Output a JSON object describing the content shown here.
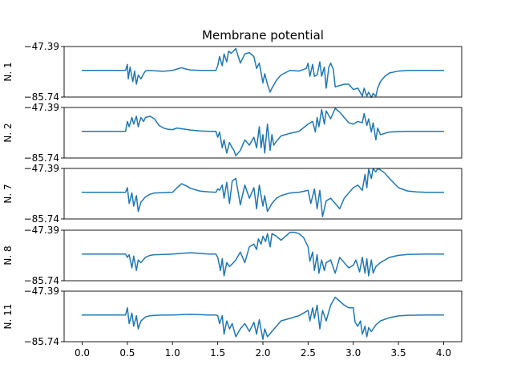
{
  "chart_data": {
    "type": "line",
    "title": "Membrane potential",
    "xlim": [
      -0.2,
      4.2
    ],
    "x_ticks": [
      "0.0",
      "0.5",
      "1.0",
      "1.5",
      "2.0",
      "2.5",
      "3.0",
      "3.5",
      "4.0"
    ],
    "ylim": [
      -85.74,
      -47.39
    ],
    "y_tick_labels": [
      "-47.39",
      "-85.74"
    ],
    "line_color": "#1f77b4",
    "grid": false,
    "panels": [
      {
        "ylabel": "N. 1",
        "x": [
          0.0,
          0.48,
          0.5,
          0.51,
          0.53,
          0.56,
          0.58,
          0.6,
          0.62,
          0.65,
          0.68,
          0.7,
          0.73,
          0.8,
          0.9,
          1.0,
          1.05,
          1.1,
          1.15,
          1.2,
          1.3,
          1.48,
          1.5,
          1.52,
          1.55,
          1.57,
          1.6,
          1.62,
          1.65,
          1.7,
          1.75,
          1.8,
          1.85,
          1.9,
          1.93,
          1.96,
          2.0,
          2.02,
          2.05,
          2.08,
          2.1,
          2.15,
          2.2,
          2.3,
          2.4,
          2.48,
          2.5,
          2.52,
          2.55,
          2.57,
          2.6,
          2.63,
          2.65,
          2.68,
          2.7,
          2.73,
          2.75,
          2.78,
          2.8,
          2.85,
          2.9,
          2.95,
          3.0,
          3.05,
          3.1,
          3.12,
          3.15,
          3.17,
          3.2,
          3.22,
          3.25,
          3.27,
          3.3,
          3.35,
          3.4,
          3.5,
          3.6,
          3.7,
          3.8,
          4.0
        ],
        "y": [
          -65.5,
          -65.5,
          -61.0,
          -72.0,
          -63.0,
          -74.0,
          -66.0,
          -76.0,
          -69.0,
          -72.0,
          -68.0,
          -66.0,
          -65.5,
          -65.8,
          -66.2,
          -65.5,
          -64.5,
          -63.5,
          -64.5,
          -65.2,
          -65.5,
          -65.5,
          -62.0,
          -55.0,
          -62.0,
          -53.0,
          -59.0,
          -51.0,
          -52.5,
          -49.0,
          -60.0,
          -53.0,
          -52.0,
          -55.0,
          -64.0,
          -60.0,
          -75.0,
          -68.0,
          -76.0,
          -82.0,
          -79.0,
          -73.0,
          -69.0,
          -65.5,
          -66.0,
          -64.0,
          -60.0,
          -70.0,
          -61.0,
          -70.0,
          -69.0,
          -59.0,
          -70.0,
          -63.0,
          -79.0,
          -63.0,
          -60.0,
          -65.0,
          -78.0,
          -77.0,
          -76.0,
          -76.0,
          -80.0,
          -79.0,
          -85.0,
          -79.0,
          -85.0,
          -82.0,
          -86.0,
          -83.0,
          -85.0,
          -79.0,
          -74.0,
          -70.0,
          -67.5,
          -66.0,
          -65.6,
          -65.5,
          -65.5,
          -65.5
        ]
      },
      {
        "ylabel": "N. 2",
        "x": [
          0.0,
          0.48,
          0.5,
          0.52,
          0.55,
          0.57,
          0.6,
          0.62,
          0.65,
          0.68,
          0.7,
          0.75,
          0.8,
          0.85,
          0.9,
          0.95,
          1.0,
          1.05,
          1.1,
          1.2,
          1.3,
          1.4,
          1.48,
          1.5,
          1.52,
          1.55,
          1.57,
          1.6,
          1.63,
          1.66,
          1.68,
          1.7,
          1.75,
          1.8,
          1.85,
          1.9,
          1.93,
          1.96,
          1.98,
          2.0,
          2.02,
          2.05,
          2.08,
          2.1,
          2.12,
          2.15,
          2.2,
          2.3,
          2.4,
          2.5,
          2.55,
          2.58,
          2.6,
          2.62,
          2.65,
          2.68,
          2.7,
          2.75,
          2.8,
          2.85,
          2.9,
          2.95,
          3.0,
          3.05,
          3.1,
          3.12,
          3.15,
          3.17,
          3.2,
          3.22,
          3.25,
          3.27,
          3.3,
          3.4,
          3.5,
          3.6,
          3.8,
          4.0
        ],
        "y": [
          -65.5,
          -65.5,
          -58.0,
          -62.0,
          -55.0,
          -60.0,
          -54.0,
          -62.0,
          -55.0,
          -58.0,
          -55.0,
          -54.0,
          -56.0,
          -61.0,
          -63.0,
          -64.0,
          -64.2,
          -63.0,
          -63.5,
          -64.5,
          -65.2,
          -65.5,
          -65.5,
          -70.0,
          -66.0,
          -78.0,
          -72.0,
          -82.0,
          -74.0,
          -78.0,
          -80.0,
          -84.0,
          -80.0,
          -72.0,
          -76.0,
          -70.0,
          -78.0,
          -62.0,
          -78.0,
          -68.0,
          -82.0,
          -60.0,
          -80.0,
          -68.0,
          -76.0,
          -73.0,
          -69.0,
          -67.0,
          -65.5,
          -60.0,
          -58.0,
          -66.0,
          -55.0,
          -62.0,
          -49.0,
          -60.0,
          -50.0,
          -56.0,
          -48.0,
          -51.0,
          -55.0,
          -59.0,
          -60.0,
          -58.0,
          -59.0,
          -52.0,
          -61.0,
          -56.0,
          -66.0,
          -59.0,
          -72.0,
          -63.0,
          -68.0,
          -66.0,
          -65.7,
          -65.5,
          -65.5,
          -65.5
        ]
      },
      {
        "ylabel": "N. 7",
        "x": [
          0.0,
          0.48,
          0.5,
          0.52,
          0.55,
          0.57,
          0.6,
          0.62,
          0.65,
          0.7,
          0.75,
          0.8,
          0.9,
          1.0,
          1.05,
          1.1,
          1.15,
          1.2,
          1.3,
          1.4,
          1.48,
          1.5,
          1.52,
          1.55,
          1.57,
          1.6,
          1.63,
          1.66,
          1.7,
          1.75,
          1.8,
          1.85,
          1.9,
          1.93,
          1.96,
          2.0,
          2.02,
          2.05,
          2.1,
          2.15,
          2.2,
          2.3,
          2.4,
          2.5,
          2.53,
          2.57,
          2.6,
          2.63,
          2.66,
          2.7,
          2.75,
          2.8,
          2.85,
          2.9,
          2.95,
          3.0,
          3.05,
          3.1,
          3.13,
          3.15,
          3.17,
          3.2,
          3.22,
          3.25,
          3.27,
          3.3,
          3.35,
          3.4,
          3.5,
          3.6,
          3.7,
          3.8,
          4.0
        ],
        "y": [
          -65.5,
          -65.5,
          -62.0,
          -74.0,
          -66.0,
          -76.0,
          -68.0,
          -80.0,
          -73.0,
          -69.0,
          -67.0,
          -66.0,
          -65.8,
          -65.5,
          -62.0,
          -59.0,
          -60.5,
          -62.5,
          -64.5,
          -65.2,
          -65.5,
          -63.0,
          -64.0,
          -60.0,
          -70.0,
          -58.0,
          -74.0,
          -57.0,
          -55.0,
          -75.0,
          -60.0,
          -70.0,
          -62.0,
          -78.0,
          -60.0,
          -76.0,
          -68.0,
          -80.0,
          -74.0,
          -70.0,
          -68.0,
          -66.0,
          -65.5,
          -64.0,
          -74.0,
          -63.0,
          -78.0,
          -64.0,
          -84.0,
          -72.0,
          -70.0,
          -74.0,
          -78.0,
          -70.0,
          -66.0,
          -62.0,
          -60.0,
          -64.0,
          -52.0,
          -62.0,
          -48.0,
          -55.0,
          -47.5,
          -50.0,
          -47.5,
          -48.5,
          -51.0,
          -55.0,
          -62.0,
          -64.5,
          -65.2,
          -65.5,
          -65.5
        ]
      },
      {
        "ylabel": "N. 8",
        "x": [
          0.0,
          0.48,
          0.5,
          0.52,
          0.55,
          0.57,
          0.6,
          0.62,
          0.65,
          0.7,
          0.75,
          0.8,
          0.9,
          1.0,
          1.1,
          1.2,
          1.3,
          1.4,
          1.48,
          1.5,
          1.53,
          1.55,
          1.57,
          1.6,
          1.63,
          1.66,
          1.7,
          1.75,
          1.8,
          1.85,
          1.9,
          1.93,
          1.95,
          1.98,
          2.0,
          2.03,
          2.05,
          2.08,
          2.1,
          2.15,
          2.2,
          2.25,
          2.3,
          2.35,
          2.4,
          2.45,
          2.5,
          2.52,
          2.55,
          2.57,
          2.6,
          2.62,
          2.65,
          2.68,
          2.7,
          2.75,
          2.8,
          2.85,
          2.9,
          2.95,
          3.0,
          3.03,
          3.07,
          3.1,
          3.13,
          3.15,
          3.17,
          3.2,
          3.22,
          3.25,
          3.3,
          3.4,
          3.5,
          3.6,
          3.8,
          4.0
        ],
        "y": [
          -65.5,
          -65.5,
          -68.0,
          -66.0,
          -76.0,
          -67.0,
          -78.0,
          -70.0,
          -72.0,
          -68.0,
          -66.5,
          -66.0,
          -65.8,
          -65.5,
          -65.0,
          -64.5,
          -65.0,
          -65.5,
          -65.5,
          -68.0,
          -78.0,
          -69.0,
          -82.0,
          -72.0,
          -75.0,
          -73.0,
          -70.0,
          -64.0,
          -72.0,
          -60.0,
          -58.0,
          -62.0,
          -54.0,
          -58.0,
          -52.0,
          -56.0,
          -50.0,
          -60.0,
          -50.0,
          -52.0,
          -55.0,
          -52.0,
          -49.0,
          -49.0,
          -50.0,
          -53.0,
          -60.0,
          -71.0,
          -64.0,
          -78.0,
          -66.0,
          -80.0,
          -70.0,
          -78.0,
          -72.0,
          -70.0,
          -80.0,
          -68.0,
          -72.0,
          -76.0,
          -74.0,
          -70.0,
          -79.0,
          -68.0,
          -80.0,
          -69.0,
          -82.0,
          -70.0,
          -80.0,
          -75.0,
          -72.0,
          -68.0,
          -66.5,
          -65.8,
          -65.5,
          -65.5
        ]
      },
      {
        "ylabel": "N. 11",
        "x": [
          0.0,
          0.48,
          0.5,
          0.52,
          0.55,
          0.57,
          0.6,
          0.62,
          0.65,
          0.7,
          0.75,
          0.8,
          0.9,
          1.0,
          1.1,
          1.2,
          1.3,
          1.4,
          1.48,
          1.5,
          1.52,
          1.55,
          1.57,
          1.6,
          1.63,
          1.66,
          1.7,
          1.75,
          1.8,
          1.85,
          1.9,
          1.93,
          1.96,
          2.0,
          2.02,
          2.05,
          2.1,
          2.15,
          2.2,
          2.3,
          2.4,
          2.5,
          2.52,
          2.55,
          2.57,
          2.6,
          2.63,
          2.66,
          2.7,
          2.75,
          2.8,
          2.85,
          2.9,
          2.95,
          3.0,
          3.02,
          3.05,
          3.08,
          3.1,
          3.13,
          3.15,
          3.17,
          3.2,
          3.25,
          3.3,
          3.4,
          3.5,
          3.6,
          3.8,
          4.0
        ],
        "y": [
          -65.5,
          -65.5,
          -60.0,
          -72.0,
          -64.0,
          -74.0,
          -66.0,
          -76.0,
          -70.0,
          -67.0,
          -66.0,
          -65.8,
          -65.5,
          -65.5,
          -65.2,
          -65.0,
          -65.2,
          -65.5,
          -65.5,
          -66.0,
          -72.0,
          -66.0,
          -80.0,
          -70.0,
          -76.0,
          -72.0,
          -82.0,
          -76.0,
          -72.0,
          -78.0,
          -71.0,
          -80.0,
          -69.0,
          -84.0,
          -76.0,
          -82.0,
          -78.0,
          -74.0,
          -70.0,
          -68.0,
          -66.0,
          -62.0,
          -70.0,
          -60.0,
          -68.0,
          -58.0,
          -76.0,
          -62.0,
          -70.0,
          -58.0,
          -52.0,
          -55.0,
          -58.0,
          -60.0,
          -60.0,
          -71.0,
          -74.0,
          -70.0,
          -80.0,
          -74.0,
          -82.0,
          -75.0,
          -78.0,
          -73.0,
          -70.0,
          -67.5,
          -66.2,
          -65.7,
          -65.5,
          -65.5
        ]
      }
    ]
  }
}
